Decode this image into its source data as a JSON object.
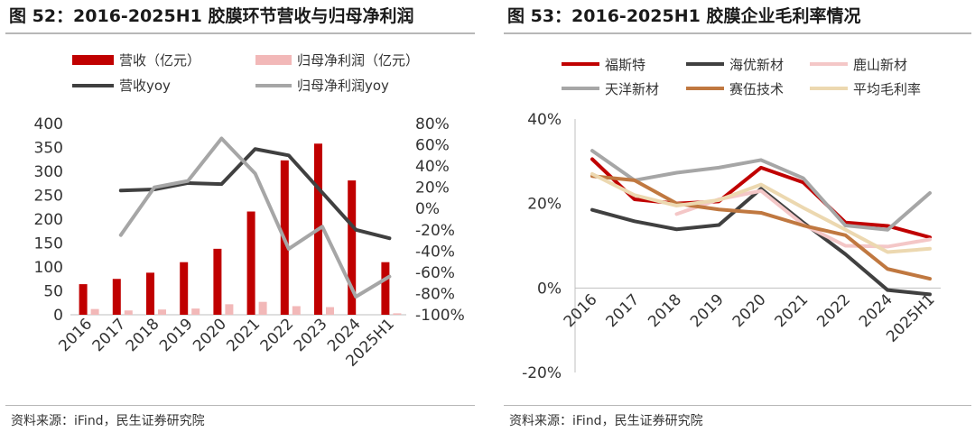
{
  "left": {
    "title": "图 52：2016-2025H1 胶膜环节营收与归母净利润",
    "source": "资料来源：iFind，民生证券研究院",
    "chart_data": {
      "type": "bar",
      "categories": [
        "2016",
        "2017",
        "2018",
        "2019",
        "2020",
        "2021",
        "2022",
        "2023",
        "2024",
        "2025H1"
      ],
      "series": [
        {
          "name": "营收（亿元）",
          "kind": "bar",
          "axis": "left",
          "color": "#c00000",
          "values": [
            64,
            75,
            88,
            110,
            138,
            216,
            323,
            358,
            281,
            110
          ]
        },
        {
          "name": "归母净利润（亿元）",
          "kind": "bar",
          "axis": "left",
          "color": "#f2b8b8",
          "values": [
            12,
            9,
            11,
            13,
            22,
            27,
            18,
            16,
            null,
            3
          ]
        },
        {
          "name": "营收yoy",
          "kind": "line",
          "axis": "right",
          "color": "#404040",
          "values": [
            null,
            17,
            18,
            24,
            23,
            56,
            50,
            15,
            -20,
            -28
          ]
        },
        {
          "name": "归母净利润yoy",
          "kind": "line",
          "axis": "right",
          "color": "#a6a6a6",
          "values": [
            null,
            -25,
            20,
            26,
            66,
            33,
            -38,
            -17,
            -83,
            -64
          ]
        }
      ],
      "ylim_left": [
        0,
        400
      ],
      "yticks_left": [
        0,
        50,
        100,
        150,
        200,
        250,
        300,
        350,
        400
      ],
      "ylim_right": [
        -100,
        80
      ],
      "yticks_right": [
        "-100%",
        "-80%",
        "-60%",
        "-40%",
        "-20%",
        "0%",
        "20%",
        "40%",
        "60%",
        "80%"
      ],
      "legend_position": "top"
    }
  },
  "right": {
    "title": "图 53：2016-2025H1 胶膜企业毛利率情况",
    "source": "资料来源：iFind，民生证券研究院",
    "chart_data": {
      "type": "line",
      "categories": [
        "2016",
        "2017",
        "2018",
        "2019",
        "2020",
        "2021",
        "2022",
        "2024",
        "2025H1"
      ],
      "series": [
        {
          "name": "福斯特",
          "color": "#c00000",
          "values": [
            30.5,
            21,
            20,
            20.5,
            28.5,
            25,
            15.5,
            14.7,
            12
          ]
        },
        {
          "name": "海优新材",
          "color": "#404040",
          "values": [
            18.5,
            15.8,
            13.9,
            14.9,
            23.5,
            15.5,
            8,
            -0.5,
            -1.5
          ]
        },
        {
          "name": "鹿山新材",
          "color": "#f4c7c7",
          "values": [
            null,
            null,
            17.5,
            21,
            23,
            15,
            10,
            9.8,
            11.5
          ]
        },
        {
          "name": "天洋新材",
          "color": "#a6a6a6",
          "values": [
            32.5,
            25.5,
            27.3,
            28.5,
            30.3,
            26,
            14.8,
            13.8,
            22.5
          ]
        },
        {
          "name": "赛伍技术",
          "color": "#c07840",
          "values": [
            26.5,
            25.5,
            20,
            18.6,
            17.8,
            14.8,
            12.5,
            4.5,
            2.2
          ]
        },
        {
          "name": "平均毛利率",
          "color": "#ecd8b0",
          "values": [
            27,
            22,
            19.5,
            20.8,
            24.5,
            19,
            13.8,
            8.5,
            9.3
          ]
        }
      ],
      "ylim": [
        -20,
        40
      ],
      "yticks": [
        "-20%",
        "0%",
        "20%",
        "40%"
      ],
      "legend_position": "top"
    }
  }
}
